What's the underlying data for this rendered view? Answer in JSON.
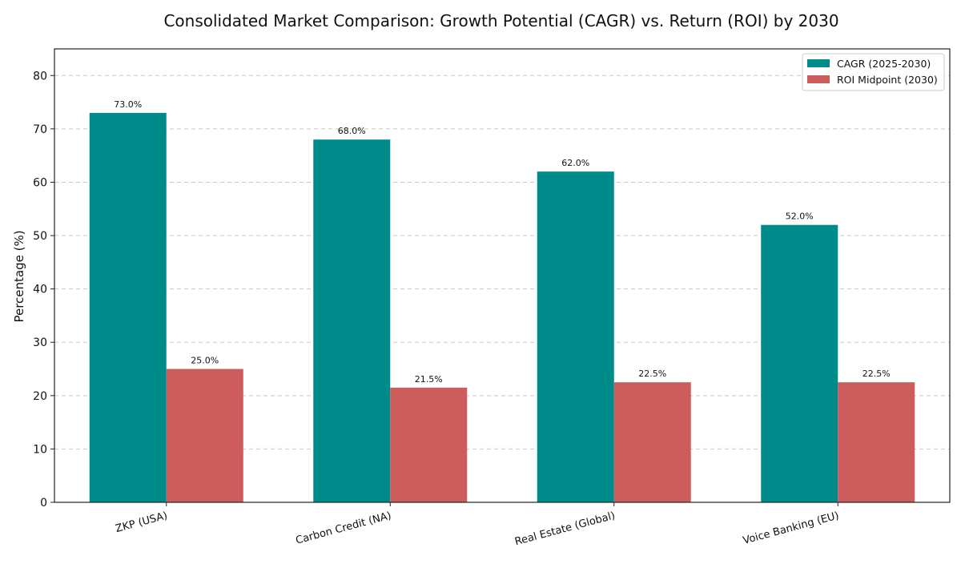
{
  "chart_data": {
    "type": "bar",
    "title": "Consolidated Market Comparison: Growth Potential (CAGR) vs. Return (ROI) by 2030",
    "xlabel": "",
    "ylabel": "Percentage (%)",
    "ylim": [
      0,
      85
    ],
    "yticks": [
      0,
      10,
      20,
      30,
      40,
      50,
      60,
      70,
      80
    ],
    "categories": [
      "ZKP (USA)",
      "Carbon Credit (NA)",
      "Real Estate (Global)",
      "Voice Banking (EU)"
    ],
    "series": [
      {
        "name": "CAGR (2025-2030)",
        "color": "#008b8b",
        "values": [
          73.0,
          68.0,
          62.0,
          52.0
        ],
        "labels": [
          "73.0%",
          "68.0%",
          "62.0%",
          "52.0%"
        ]
      },
      {
        "name": "ROI Midpoint (2030)",
        "color": "#cd5c5c",
        "values": [
          25.0,
          21.5,
          22.5,
          22.5
        ],
        "labels": [
          "25.0%",
          "21.5%",
          "22.5%",
          "22.5%"
        ]
      }
    ],
    "grid": true,
    "legend_position": "top-right"
  }
}
